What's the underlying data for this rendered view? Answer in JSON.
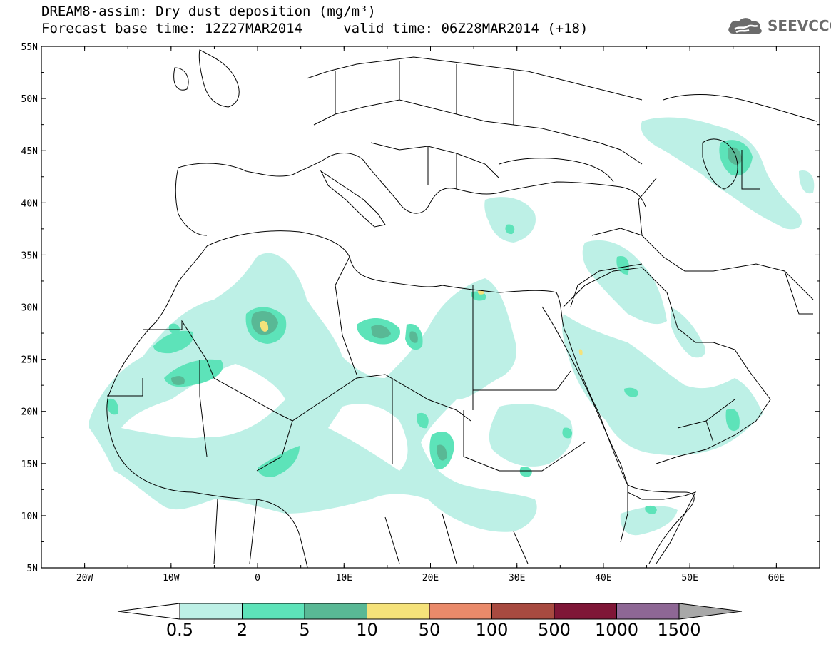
{
  "header": {
    "title_line1": "DREAM8-assim: Dry dust deposition (mg/m³)",
    "title_line2": "Forecast base time: 12Z27MAR2014     valid time: 06Z28MAR2014 (+18)",
    "logo_text": "SEEVCCC",
    "logo_color": "#6b6b6b"
  },
  "map": {
    "region": "North Africa, Europe, Middle East",
    "projection": "lat-lon",
    "lon_range": [
      -25,
      65
    ],
    "lat_range": [
      5,
      55
    ],
    "lat_labels": [
      "55N",
      "50N",
      "45N",
      "40N",
      "35N",
      "30N",
      "25N",
      "20N",
      "15N",
      "10N",
      "5N"
    ],
    "lon_labels": [
      "20W",
      "10W",
      "0",
      "10E",
      "20E",
      "30E",
      "40E",
      "50E",
      "60E"
    ]
  },
  "colorbar": {
    "boundaries": [
      "0.5",
      "2",
      "5",
      "10",
      "50",
      "100",
      "500",
      "1000",
      "1500"
    ],
    "colors": [
      "#bdf0e6",
      "#5de3b9",
      "#59b895",
      "#f5e27a",
      "#ea8a6a",
      "#a84a40",
      "#7f1637",
      "#8e6795"
    ],
    "over_color": "#a8a8a8",
    "under_color": "#ffffff"
  }
}
